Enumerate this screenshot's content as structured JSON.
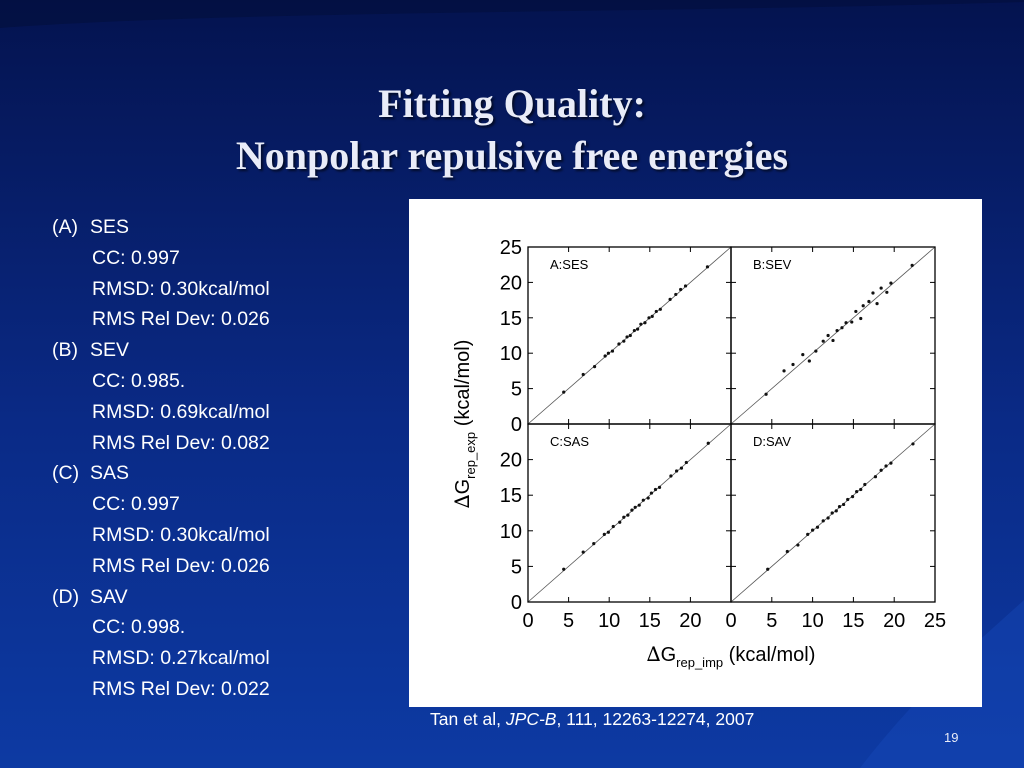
{
  "slide": {
    "title_line1": "Fitting Quality:",
    "title_line2": "Nonpolar repulsive free energies",
    "page_number": "19"
  },
  "stats": [
    {
      "tag": "(A)",
      "name": "SES",
      "cc": "CC: 0.997",
      "rmsd": "RMSD: 0.30kcal/mol",
      "rel": "RMS Rel Dev: 0.026"
    },
    {
      "tag": "(B)",
      "name": "SEV",
      "cc": "CC: 0.985.",
      "rmsd": "RMSD: 0.69kcal/mol",
      "rel": "RMS Rel Dev: 0.082"
    },
    {
      "tag": "(C)",
      "name": "SAS",
      "cc": "CC: 0.997",
      "rmsd": "RMSD: 0.30kcal/mol",
      "rel": "RMS Rel Dev: 0.026"
    },
    {
      "tag": "(D)",
      "name": "SAV",
      "cc": "CC: 0.998.",
      "rmsd": "RMSD: 0.27kcal/mol",
      "rel": "RMS Rel Dev: 0.022"
    }
  ],
  "citation": {
    "authors": "Tan et al, ",
    "journal": "JPC-B",
    "rest": ", 111, 12263-12274, 2007"
  },
  "chart_data": {
    "type": "scatter",
    "xlabel": {
      "main": "G",
      "sub": "rep_imp",
      "unit": "(kcal/mol)",
      "symbol": "∆"
    },
    "ylabel": {
      "main": "G",
      "sub": "rep_exp",
      "unit": "(kcal/mol)",
      "symbol": "∆"
    },
    "xlim": [
      0,
      25
    ],
    "ylim": [
      0,
      25
    ],
    "x_ticks_left": [
      "0",
      "5",
      "10",
      "15",
      "20"
    ],
    "x_ticks_right": [
      "0",
      "5",
      "10",
      "15",
      "20",
      "25"
    ],
    "y_ticks_top": [
      "0",
      "5",
      "10",
      "15",
      "20",
      "25"
    ],
    "y_ticks_bottom": [
      "0",
      "5",
      "10",
      "15",
      "20"
    ],
    "diagonal": true,
    "panels": [
      {
        "label": "A:SES",
        "points": [
          [
            4.4,
            4.5
          ],
          [
            6.8,
            7.0
          ],
          [
            8.2,
            8.1
          ],
          [
            9.5,
            9.6
          ],
          [
            9.9,
            10.0
          ],
          [
            10.4,
            10.3
          ],
          [
            11.2,
            11.3
          ],
          [
            11.8,
            11.7
          ],
          [
            12.2,
            12.3
          ],
          [
            12.6,
            12.5
          ],
          [
            13.1,
            13.2
          ],
          [
            13.5,
            13.4
          ],
          [
            13.9,
            14.1
          ],
          [
            14.4,
            14.3
          ],
          [
            14.9,
            15.0
          ],
          [
            15.3,
            15.2
          ],
          [
            15.8,
            15.9
          ],
          [
            16.3,
            16.2
          ],
          [
            17.5,
            17.6
          ],
          [
            18.2,
            18.3
          ],
          [
            18.8,
            19.0
          ],
          [
            19.4,
            19.5
          ],
          [
            22.1,
            22.2
          ]
        ]
      },
      {
        "label": "B:SEV",
        "points": [
          [
            4.3,
            4.2
          ],
          [
            6.5,
            7.5
          ],
          [
            7.6,
            8.4
          ],
          [
            8.8,
            9.8
          ],
          [
            9.6,
            8.9
          ],
          [
            10.4,
            10.3
          ],
          [
            11.3,
            11.7
          ],
          [
            11.9,
            12.5
          ],
          [
            12.5,
            11.8
          ],
          [
            13.0,
            13.2
          ],
          [
            13.6,
            13.6
          ],
          [
            14.1,
            14.3
          ],
          [
            14.8,
            14.4
          ],
          [
            15.3,
            15.9
          ],
          [
            15.9,
            14.9
          ],
          [
            16.2,
            16.7
          ],
          [
            16.9,
            17.3
          ],
          [
            17.4,
            18.5
          ],
          [
            17.9,
            17.0
          ],
          [
            18.4,
            19.2
          ],
          [
            19.1,
            18.6
          ],
          [
            19.6,
            19.9
          ],
          [
            22.2,
            22.4
          ]
        ]
      },
      {
        "label": "C:SAS",
        "points": [
          [
            4.4,
            4.6
          ],
          [
            6.8,
            7.0
          ],
          [
            8.1,
            8.2
          ],
          [
            9.4,
            9.5
          ],
          [
            9.9,
            9.8
          ],
          [
            10.5,
            10.6
          ],
          [
            11.3,
            11.2
          ],
          [
            11.8,
            11.9
          ],
          [
            12.3,
            12.2
          ],
          [
            12.8,
            12.9
          ],
          [
            13.2,
            13.3
          ],
          [
            13.7,
            13.6
          ],
          [
            14.2,
            14.3
          ],
          [
            14.8,
            14.6
          ],
          [
            15.2,
            15.3
          ],
          [
            15.7,
            15.8
          ],
          [
            16.2,
            16.1
          ],
          [
            17.6,
            17.7
          ],
          [
            18.3,
            18.4
          ],
          [
            18.9,
            18.8
          ],
          [
            19.5,
            19.6
          ],
          [
            22.2,
            22.3
          ]
        ]
      },
      {
        "label": "D:SAV",
        "points": [
          [
            4.5,
            4.6
          ],
          [
            6.9,
            7.1
          ],
          [
            8.2,
            8.0
          ],
          [
            9.4,
            9.5
          ],
          [
            10.0,
            10.1
          ],
          [
            10.6,
            10.5
          ],
          [
            11.3,
            11.4
          ],
          [
            11.9,
            11.8
          ],
          [
            12.4,
            12.5
          ],
          [
            12.9,
            12.8
          ],
          [
            13.3,
            13.4
          ],
          [
            13.8,
            13.7
          ],
          [
            14.3,
            14.4
          ],
          [
            14.9,
            14.8
          ],
          [
            15.4,
            15.5
          ],
          [
            15.9,
            15.8
          ],
          [
            16.4,
            16.5
          ],
          [
            17.7,
            17.6
          ],
          [
            18.4,
            18.5
          ],
          [
            19.0,
            19.1
          ],
          [
            19.6,
            19.5
          ],
          [
            22.3,
            22.2
          ]
        ]
      }
    ]
  }
}
